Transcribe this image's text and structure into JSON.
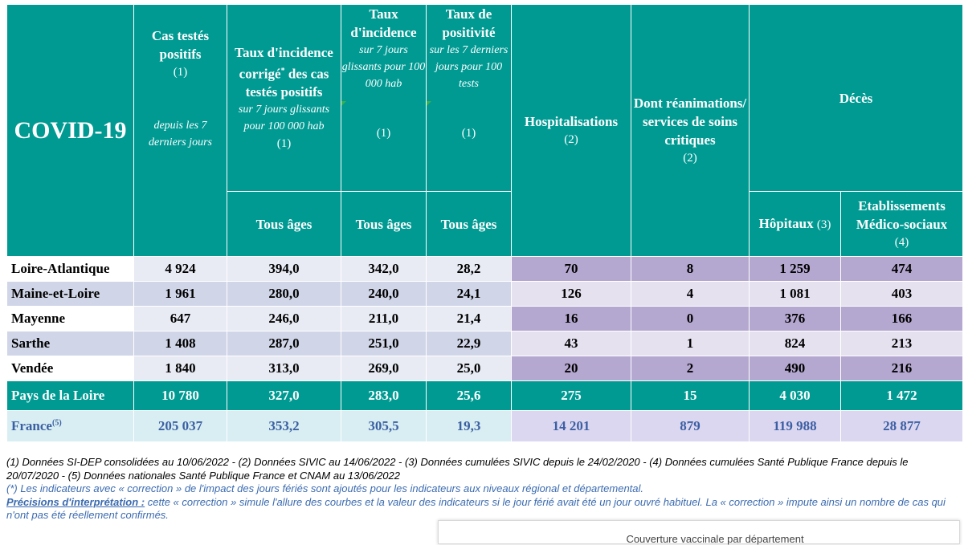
{
  "header": {
    "title": "COVID-19",
    "col_cas": {
      "name": "Cas testés positifs",
      "num": "(1)",
      "note": "depuis les 7 derniers jours"
    },
    "col_tx_corr": {
      "name_a": "Taux d'incidence corrigé",
      "star": "*",
      "name_b": "des cas testés positifs",
      "note": "sur 7 jours glissants pour 100 000 hab",
      "num": "(1)"
    },
    "col_tx": {
      "name": "Taux d'incidence",
      "note": "sur 7 jours glissants pour 100 000 hab",
      "num": "(1)"
    },
    "col_pos": {
      "name": "Taux de positivité",
      "note": "sur les 7 derniers jours pour 100 tests",
      "num": "(1)"
    },
    "col_hosp": {
      "name": "Hospitalisations",
      "num": "(2)"
    },
    "col_rea": {
      "name": "Dont réanimations/ services de soins critiques",
      "num": "(2)"
    },
    "col_deces": {
      "name": "Décès"
    },
    "sub_ages": "Tous âges",
    "sub_hop": {
      "name": "Hôpitaux",
      "num": "(3)"
    },
    "sub_ems": {
      "name": "Etablissements Médico-sociaux",
      "num": "(4)"
    }
  },
  "rows": [
    {
      "name": "Loire-Atlantique",
      "cas": "4 924",
      "tx_corr": "394,0",
      "tx": "342,0",
      "pos": "28,2",
      "hosp": "70",
      "rea": "8",
      "hop": "1 259",
      "ems": "474"
    },
    {
      "name": "Maine-et-Loire",
      "cas": "1 961",
      "tx_corr": "280,0",
      "tx": "240,0",
      "pos": "24,1",
      "hosp": "126",
      "rea": "4",
      "hop": "1 081",
      "ems": "403"
    },
    {
      "name": "Mayenne",
      "cas": "647",
      "tx_corr": "246,0",
      "tx": "211,0",
      "pos": "21,4",
      "hosp": "16",
      "rea": "0",
      "hop": "376",
      "ems": "166"
    },
    {
      "name": "Sarthe",
      "cas": "1 408",
      "tx_corr": "287,0",
      "tx": "251,0",
      "pos": "22,9",
      "hosp": "43",
      "rea": "1",
      "hop": "824",
      "ems": "213"
    },
    {
      "name": "Vendée",
      "cas": "1 840",
      "tx_corr": "313,0",
      "tx": "269,0",
      "pos": "25,0",
      "hosp": "20",
      "rea": "2",
      "hop": "490",
      "ems": "216"
    }
  ],
  "region": {
    "name": "Pays de la Loire",
    "cas": "10 780",
    "tx_corr": "327,0",
    "tx": "283,0",
    "pos": "25,6",
    "hosp": "275",
    "rea": "15",
    "hop": "4 030",
    "ems": "1 472"
  },
  "france": {
    "name": "France",
    "sup": "(5)",
    "cas": "205 037",
    "tx_corr": "353,2",
    "tx": "305,5",
    "pos": "19,3",
    "hosp": "14 201",
    "rea": "879",
    "hop": "119 988",
    "ems": "28 877"
  },
  "footnotes": {
    "sources": "(1) Données SI-DEP consolidées au 10/06/2022 - (2) Données SIVIC au 14/06/2022 - (3) Données cumulées SIVIC depuis le 24/02/2020 - (4) Données cumulées Santé Publique France depuis le 20/07/2020 - (5) Données nationales Santé Publique France et CNAM au 13/06/2022",
    "star_note": "(*) Les indicateurs avec « correction » de l'impact des jours fériés sont ajoutés pour les indicateurs aux niveaux régional et départemental.",
    "precisions_label": "Précisions d'interprétation :",
    "precisions_text": " cette « correction » simule l'allure des courbes et la valeur des indicateurs si le jour férié avait été un jour ouvré habituel. La « correction » impute ainsi un nombre de cas qui n'ont pas été réellement confirmés."
  },
  "popup": {
    "text": "Couverture vaccinale par département"
  },
  "colors": {
    "teal": "#009a93",
    "purple": "#b4a7d0",
    "lavender": "#e6e1ef",
    "blue_text": "#3b5fa3"
  }
}
